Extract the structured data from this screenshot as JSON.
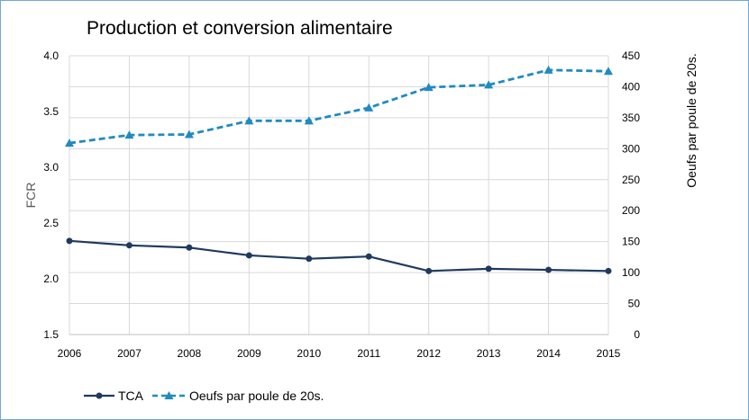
{
  "chart_data": {
    "type": "line",
    "title": "Production et conversion alimentaire",
    "x": [
      "2006",
      "2007",
      "2008",
      "2009",
      "2010",
      "2011",
      "2012",
      "2013",
      "2014",
      "2015"
    ],
    "ylabel": "FCR",
    "y2label": "Oeufs par poule de 20s.",
    "ylim": [
      1.5,
      4.0
    ],
    "y2lim": [
      0,
      450
    ],
    "yticks": [
      "1.5",
      "2.0",
      "2.5",
      "3.0",
      "3.5",
      "4.0"
    ],
    "y2ticks": [
      "0",
      "50",
      "100",
      "150",
      "200",
      "250",
      "300",
      "350",
      "400",
      "450"
    ],
    "grid": true,
    "legend_position": "bottom-left",
    "series": [
      {
        "name": "TCA",
        "axis": "left",
        "color": "#1f3a5f",
        "style": "solid",
        "marker": "circle",
        "values": [
          2.34,
          2.3,
          2.28,
          2.21,
          2.18,
          2.2,
          2.07,
          2.09,
          2.08,
          2.07
        ]
      },
      {
        "name": "Oeufs par poule de 20s.",
        "axis": "right",
        "color": "#1f8bc0",
        "style": "dashed",
        "marker": "triangle",
        "values": [
          309,
          322,
          323,
          345,
          345,
          366,
          399,
          403,
          427,
          425
        ]
      }
    ]
  }
}
